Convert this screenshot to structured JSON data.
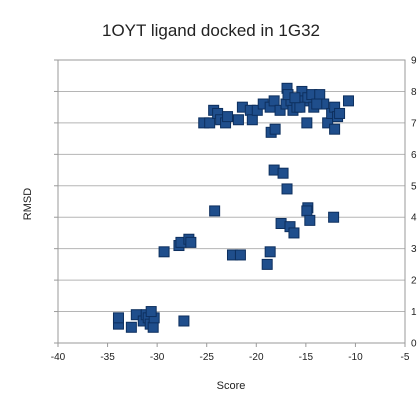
{
  "chart_data": {
    "type": "scatter",
    "title": "1OYT ligand docked in 1G32",
    "xlabel": "Score",
    "ylabel": "RMSD",
    "xlim": [
      -40,
      -5
    ],
    "ylim": [
      0,
      9
    ],
    "x_ticks": [
      "-40",
      "-35",
      "-30",
      "-25",
      "-20",
      "-15",
      "-10",
      "-5"
    ],
    "y_ticks": [
      "0",
      "1",
      "2",
      "3",
      "4",
      "5",
      "6",
      "7",
      "8",
      "9"
    ],
    "grid": "horizontal",
    "legend": "none",
    "marker_color": "#1f4e8c",
    "marker_edge_color": "#0d2f5e",
    "series": [
      {
        "x": [
          -33.9,
          -33.9,
          -32.6,
          -32.1,
          -31.4,
          -31.1,
          -30.9,
          -30.7,
          -30.4,
          -30.3,
          -30.6,
          -27.3,
          -29.3,
          -27.8,
          -27.6,
          -26.8,
          -26.6,
          -24.2,
          -22.4,
          -21.6,
          -18.9,
          -18.6,
          -18.2,
          -17.3,
          -16.9,
          -17.5,
          -16.6,
          -16.2,
          -14.8,
          -14.9,
          -14.6,
          -12.2,
          -25.3,
          -24.7,
          -24.3,
          -23.9,
          -23.6,
          -23.1,
          -22.9,
          -21.8,
          -21.4,
          -20.6,
          -20.4,
          -19.9,
          -19.3,
          -18.6,
          -18.2,
          -17.6,
          -17.0,
          -16.9,
          -16.5,
          -16.3,
          -15.9,
          -15.4,
          -15.1,
          -14.8,
          -14.4,
          -14.2,
          -13.6,
          -13.2,
          -12.8,
          -12.4,
          -12.1,
          -11.8,
          -11.6,
          -10.7,
          -18.5,
          -18.1,
          -16.8,
          -14.9,
          -13.9,
          -12.1,
          -15.6,
          -16.1
        ],
        "y": [
          0.6,
          0.8,
          0.5,
          0.9,
          0.7,
          0.9,
          0.8,
          0.6,
          0.5,
          0.8,
          1.0,
          0.7,
          2.9,
          3.1,
          3.2,
          3.3,
          3.2,
          4.2,
          2.8,
          2.8,
          2.5,
          2.9,
          5.5,
          5.4,
          4.9,
          3.8,
          3.7,
          3.5,
          4.3,
          4.2,
          3.9,
          4.0,
          7.0,
          7.0,
          7.4,
          7.3,
          7.1,
          7.0,
          7.2,
          7.1,
          7.5,
          7.4,
          7.1,
          7.4,
          7.6,
          7.5,
          7.7,
          7.4,
          7.6,
          8.1,
          7.7,
          7.4,
          7.5,
          8.0,
          7.7,
          7.8,
          7.9,
          7.5,
          7.9,
          7.6,
          7.0,
          7.3,
          7.5,
          7.2,
          7.3,
          7.7,
          6.7,
          6.8,
          7.9,
          7.0,
          7.6,
          6.8,
          7.5,
          7.8
        ]
      }
    ]
  }
}
